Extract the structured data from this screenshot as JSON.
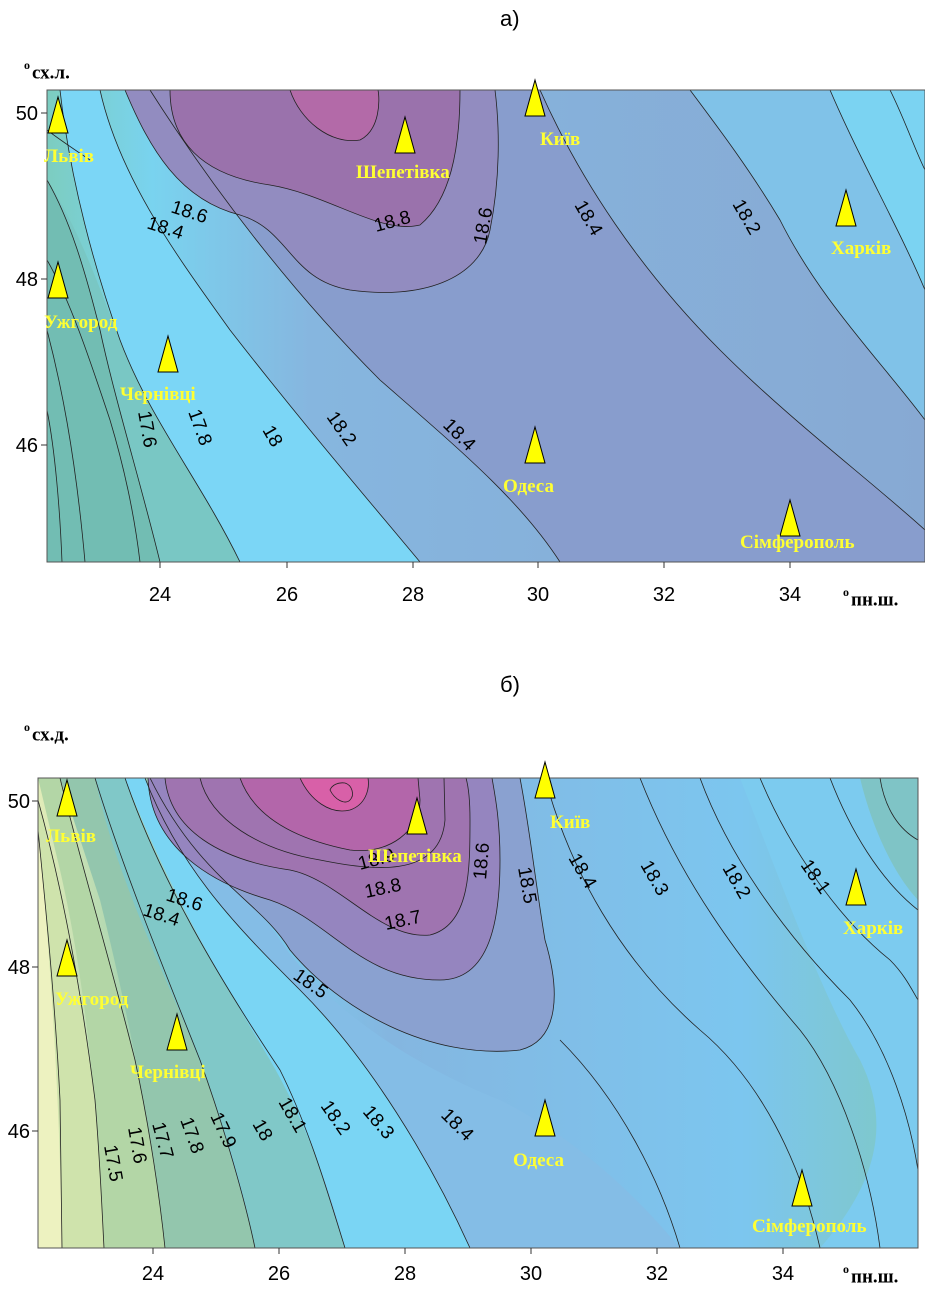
{
  "panels": [
    {
      "letter": "а)",
      "y_axis_title": "сх.л.",
      "x_axis_title": "пн.ш.",
      "degree_mark": "о",
      "x_ticks": [
        "24",
        "26",
        "28",
        "30",
        "32",
        "34"
      ],
      "y_ticks": [
        "50",
        "48",
        "46"
      ],
      "contour_labels": [
        "18.6",
        "18.4",
        "18.8",
        "18.6",
        "18.4",
        "18.2",
        "17.6",
        "17.8",
        "18",
        "18.2",
        "18.4"
      ],
      "cities": [
        "Львів",
        "Шепетівка",
        "Київ",
        "Харків",
        "Ужгород",
        "Чернівці",
        "Одеса",
        "Сімферополь"
      ]
    },
    {
      "letter": "б)",
      "y_axis_title": "сх.д.",
      "x_axis_title": "пн.ш.",
      "degree_mark": "о",
      "x_ticks": [
        "24",
        "26",
        "28",
        "30",
        "32",
        "34"
      ],
      "y_ticks": [
        "50",
        "48",
        "46"
      ],
      "contour_labels": [
        "18.6",
        "18.4",
        "18.9",
        "18.8",
        "18.7",
        "18.6",
        "18.5",
        "18.4",
        "18.3",
        "18.2",
        "18.1",
        "18.5",
        "17.5",
        "17.6",
        "17.7",
        "17.8",
        "17.9",
        "18",
        "18.1",
        "18.2",
        "18.3",
        "18.4"
      ],
      "cities": [
        "Львів",
        "Шепетівка",
        "Київ",
        "Харків",
        "Ужгород",
        "Чернівці",
        "Одеса",
        "Сімферополь"
      ]
    }
  ],
  "colors": {
    "low_green": "#76c3b8",
    "cyan": "#7bd3f2",
    "blue": "#88a9d4",
    "purple": "#9a74ac",
    "magenta": "#b56aa8",
    "yellow_green": "#d9e7b0",
    "marker": "#ffff00",
    "city_label": "#ffff33"
  }
}
